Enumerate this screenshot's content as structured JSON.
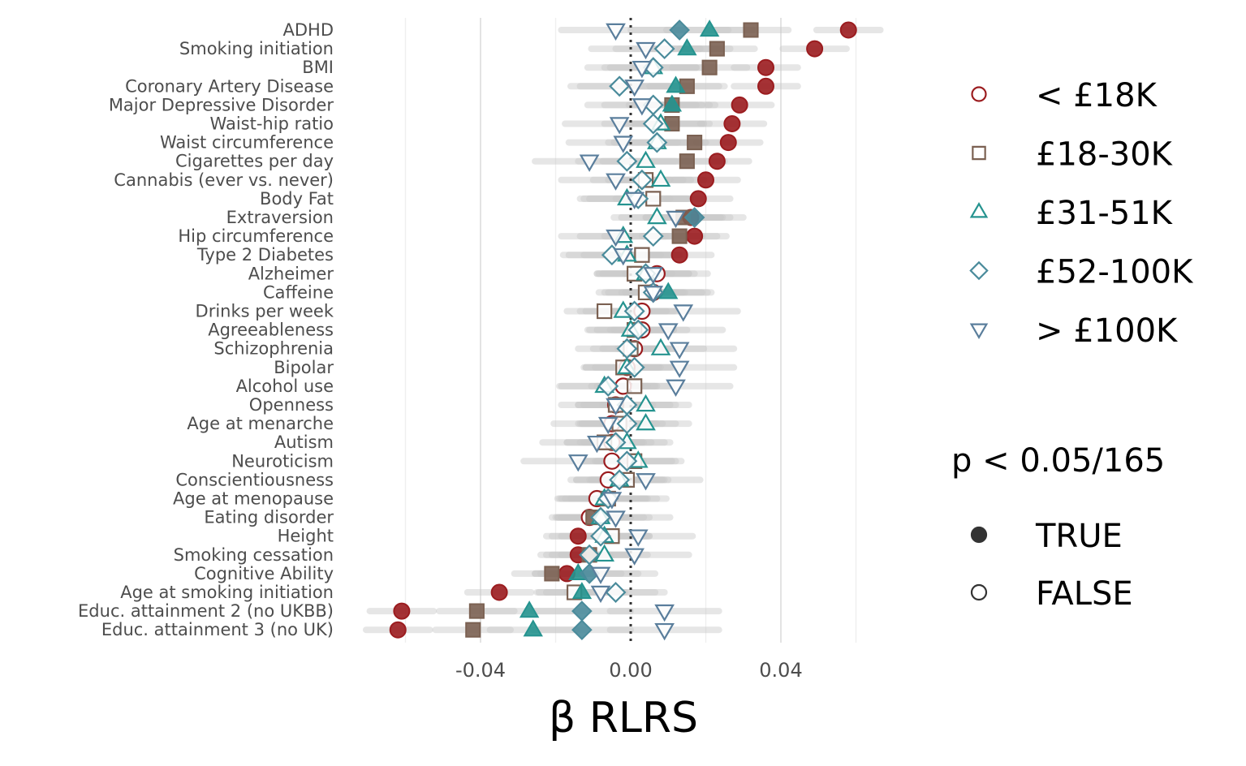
{
  "chart_data": {
    "type": "scatter",
    "title": "",
    "xlabel": "β RLRS",
    "ylabel": "",
    "xlim": [
      -0.068,
      0.068
    ],
    "xticks": [
      -0.04,
      0.0,
      0.04
    ],
    "xtick_labels": [
      "-0.04",
      "0.00",
      "0.04"
    ],
    "grid": true,
    "reference_line": 0,
    "ci_bands": true,
    "categories": [
      "ADHD",
      "Smoking initiation",
      "BMI",
      "Coronary Artery Disease",
      "Major Depressive Disorder",
      "Waist-hip ratio",
      "Waist circumference",
      "Cigarettes per day",
      "Cannabis (ever vs. never)",
      "Body Fat",
      "Extraversion",
      "Hip circumference",
      "Type 2 Diabetes",
      "Alzheimer",
      "Caffeine",
      "Drinks per week",
      "Agreeableness",
      "Schizophrenia",
      "Bipolar",
      "Alcohol use",
      "Openness",
      "Age at menarche",
      "Autism",
      "Neuroticism",
      "Conscientiousness",
      "Age at menopause",
      "Eating disorder",
      "Height",
      "Smoking cessation",
      "Cognitive Ability",
      "Age at smoking initiation",
      "Educ. attainment 2 (no UKBB)",
      "Educ. attainment 3 (no UK)"
    ],
    "series": [
      {
        "name": "< £18K",
        "shape": "circle",
        "color": "#9b1c1f",
        "values": [
          0.058,
          0.049,
          0.036,
          0.036,
          0.029,
          0.027,
          0.026,
          0.023,
          0.02,
          0.018,
          0.016,
          0.017,
          0.013,
          0.007,
          0.006,
          0.003,
          0.003,
          0.001,
          -0.001,
          -0.002,
          -0.004,
          -0.005,
          -0.005,
          -0.005,
          -0.006,
          -0.009,
          -0.011,
          -0.014,
          -0.014,
          -0.017,
          -0.035,
          -0.061,
          -0.062
        ],
        "significant": [
          true,
          true,
          true,
          true,
          true,
          true,
          true,
          true,
          true,
          true,
          true,
          true,
          true,
          false,
          false,
          false,
          false,
          false,
          false,
          false,
          false,
          false,
          false,
          false,
          false,
          false,
          false,
          true,
          true,
          true,
          true,
          true,
          true
        ]
      },
      {
        "name": "£18-30K",
        "shape": "square",
        "color": "#7b6152",
        "values": [
          0.032,
          0.023,
          0.021,
          0.015,
          0.011,
          0.011,
          0.017,
          0.015,
          0.004,
          0.006,
          0.014,
          0.013,
          0.003,
          0.001,
          0.004,
          -0.007,
          0.001,
          0.0,
          -0.002,
          0.001,
          -0.004,
          -0.003,
          -0.007,
          0.001,
          -0.001,
          -0.006,
          -0.01,
          -0.005,
          -0.011,
          -0.021,
          -0.015,
          -0.041,
          -0.042
        ],
        "significant": [
          true,
          true,
          true,
          true,
          true,
          true,
          true,
          true,
          false,
          false,
          true,
          true,
          false,
          false,
          false,
          false,
          false,
          false,
          false,
          false,
          false,
          false,
          false,
          false,
          false,
          false,
          true,
          false,
          true,
          true,
          false,
          true,
          true
        ]
      },
      {
        "name": "£31-51K",
        "shape": "triangle-up",
        "color": "#25938f",
        "values": [
          0.021,
          0.015,
          0.006,
          0.012,
          0.011,
          0.008,
          0.007,
          0.004,
          0.008,
          -0.001,
          0.007,
          -0.002,
          -0.001,
          0.004,
          0.01,
          -0.002,
          0.0,
          0.008,
          -0.001,
          -0.007,
          0.004,
          0.004,
          -0.001,
          0.002,
          -0.003,
          -0.007,
          -0.008,
          -0.007,
          -0.007,
          -0.014,
          -0.013,
          -0.027,
          -0.026
        ],
        "significant": [
          true,
          true,
          false,
          true,
          true,
          false,
          false,
          false,
          false,
          false,
          false,
          false,
          false,
          false,
          true,
          false,
          false,
          false,
          false,
          false,
          false,
          false,
          false,
          false,
          false,
          false,
          false,
          false,
          false,
          true,
          true,
          true,
          true
        ]
      },
      {
        "name": "£52-100K",
        "shape": "diamond",
        "color": "#4a8b9b",
        "values": [
          0.013,
          0.009,
          0.006,
          -0.003,
          0.006,
          0.006,
          0.007,
          -0.001,
          0.003,
          0.002,
          0.017,
          0.006,
          -0.005,
          0.004,
          0.006,
          0.001,
          0.002,
          -0.001,
          0.001,
          -0.006,
          -0.001,
          -0.001,
          -0.004,
          -0.001,
          -0.003,
          -0.006,
          -0.008,
          -0.008,
          -0.011,
          -0.011,
          -0.004,
          -0.013,
          -0.013
        ],
        "significant": [
          true,
          false,
          false,
          false,
          false,
          false,
          false,
          false,
          false,
          false,
          true,
          false,
          false,
          false,
          false,
          false,
          false,
          false,
          false,
          false,
          false,
          false,
          false,
          false,
          false,
          false,
          false,
          false,
          false,
          true,
          false,
          true,
          true
        ]
      },
      {
        "name": "> £100K",
        "shape": "triangle-down",
        "color": "#5a7e9c",
        "values": [
          -0.004,
          0.004,
          0.003,
          0.001,
          0.003,
          -0.003,
          -0.002,
          -0.011,
          -0.004,
          0.001,
          0.012,
          -0.004,
          -0.002,
          0.006,
          0.006,
          0.014,
          0.01,
          0.013,
          0.013,
          0.012,
          -0.004,
          -0.006,
          -0.009,
          -0.014,
          0.004,
          -0.005,
          -0.004,
          0.002,
          0.001,
          -0.008,
          -0.008,
          0.009,
          0.009
        ],
        "significant": [
          false,
          false,
          false,
          false,
          false,
          false,
          false,
          false,
          false,
          false,
          false,
          false,
          false,
          false,
          false,
          false,
          false,
          false,
          false,
          false,
          false,
          false,
          false,
          false,
          false,
          false,
          false,
          false,
          false,
          false,
          false,
          false,
          false
        ]
      }
    ],
    "legend_income": {
      "position": "right",
      "entries": [
        "< £18K",
        "£18-30K",
        "£31-51K",
        "£52-100K",
        "> £100K"
      ]
    },
    "legend_significance": {
      "title": "p < 0.05/165",
      "entries": [
        "TRUE",
        "FALSE"
      ]
    }
  }
}
